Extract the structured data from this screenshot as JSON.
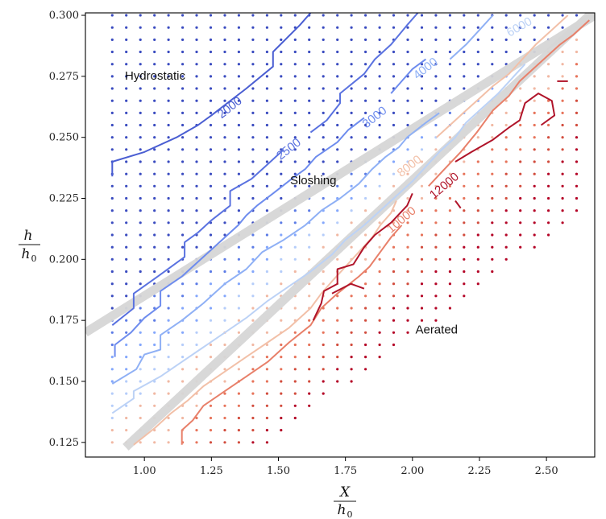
{
  "chart_data": {
    "type": "contour",
    "xlabel": {
      "num": "X",
      "den": "h",
      "den_sub": "0"
    },
    "ylabel": {
      "num": "h",
      "den": "h",
      "den_sub": "0"
    },
    "xlim": [
      0.78,
      2.68
    ],
    "ylim": [
      0.119,
      0.301
    ],
    "x_ticks": [
      "1.00",
      "1.25",
      "1.50",
      "1.75",
      "2.00",
      "2.25",
      "2.50"
    ],
    "x_tick_values": [
      1.0,
      1.25,
      1.5,
      1.75,
      2.0,
      2.25,
      2.5
    ],
    "y_ticks": [
      "0.125",
      "0.150",
      "0.175",
      "0.200",
      "0.225",
      "0.250",
      "0.275",
      "0.300"
    ],
    "y_tick_values": [
      0.125,
      0.15,
      0.175,
      0.2,
      0.225,
      0.25,
      0.275,
      0.3
    ],
    "regions": [
      {
        "label": "Hydrostatic",
        "x": 1.04,
        "y": 0.275
      },
      {
        "label": "Sloshing",
        "x": 1.63,
        "y": 0.232
      },
      {
        "label": "Aerated",
        "x": 2.09,
        "y": 0.171
      }
    ],
    "boundaries": [
      {
        "x": [
          0.78,
          2.68
        ],
        "y": [
          0.17,
          0.3
        ]
      },
      {
        "x": [
          0.93,
          2.68
        ],
        "y": [
          0.123,
          0.302
        ]
      }
    ],
    "contours": [
      {
        "level": 2000,
        "label": "2000",
        "color": "#4a5ed2",
        "points": [
          [
            0.88,
            0.234
          ],
          [
            0.88,
            0.24
          ],
          [
            1.0,
            0.244
          ],
          [
            1.12,
            0.25
          ],
          [
            1.2,
            0.255
          ],
          [
            1.25,
            0.259
          ],
          [
            1.38,
            0.27
          ],
          [
            1.48,
            0.279
          ],
          [
            1.48,
            0.285
          ],
          [
            1.58,
            0.296
          ],
          [
            1.62,
            0.301
          ]
        ],
        "label_at": [
          1.32,
          0.262
        ],
        "label_angle": -38
      },
      {
        "level": 2500,
        "label": "2500",
        "color": "#5a72e0",
        "points": [
          [
            0.88,
            0.173
          ],
          [
            0.96,
            0.18
          ],
          [
            0.96,
            0.186
          ],
          [
            1.05,
            0.193
          ],
          [
            1.15,
            0.201
          ],
          [
            1.15,
            0.207
          ],
          [
            1.2,
            0.211
          ],
          [
            1.25,
            0.216
          ],
          [
            1.32,
            0.222
          ],
          [
            1.32,
            0.228
          ],
          [
            1.4,
            0.233
          ],
          [
            1.45,
            0.238
          ],
          [
            1.5,
            0.243
          ],
          [
            1.52,
            0.245
          ]
        ],
        "label_at": [
          1.54,
          0.245
        ],
        "label_angle": -38
      },
      {
        "level": 2500,
        "label": "",
        "color": "#5a72e0",
        "points": [
          [
            1.62,
            0.252
          ],
          [
            1.68,
            0.257
          ],
          [
            1.73,
            0.264
          ],
          [
            1.73,
            0.268
          ],
          [
            1.82,
            0.276
          ],
          [
            1.86,
            0.282
          ],
          [
            1.92,
            0.288
          ],
          [
            1.98,
            0.296
          ],
          [
            2.02,
            0.301
          ]
        ],
        "label_at": null,
        "label_angle": 0
      },
      {
        "level": 3000,
        "label": "3000",
        "color": "#6e8cee",
        "points": [
          [
            0.89,
            0.16
          ],
          [
            0.89,
            0.165
          ],
          [
            0.95,
            0.17
          ],
          [
            1.0,
            0.176
          ],
          [
            1.06,
            0.181
          ],
          [
            1.06,
            0.187
          ],
          [
            1.14,
            0.193
          ],
          [
            1.2,
            0.199
          ],
          [
            1.25,
            0.204
          ],
          [
            1.3,
            0.209
          ],
          [
            1.35,
            0.214
          ],
          [
            1.38,
            0.218
          ],
          [
            1.42,
            0.222
          ],
          [
            1.48,
            0.227
          ],
          [
            1.55,
            0.233
          ],
          [
            1.6,
            0.237
          ],
          [
            1.64,
            0.242
          ],
          [
            1.72,
            0.248
          ],
          [
            1.76,
            0.253
          ],
          [
            1.82,
            0.258
          ]
        ],
        "label_at": [
          1.86,
          0.258
        ],
        "label_angle": -38
      },
      {
        "level": 3000,
        "label": "",
        "color": "#6e8cee",
        "points": [
          [
            1.92,
            0.268
          ],
          [
            1.96,
            0.273
          ],
          [
            2.0,
            0.278
          ],
          [
            2.05,
            0.282
          ]
        ],
        "label_at": null,
        "label_angle": 0
      },
      {
        "level": 4000,
        "label": "4000",
        "color": "#8fb0f5",
        "points": [
          [
            0.88,
            0.149
          ],
          [
            0.97,
            0.155
          ],
          [
            1.0,
            0.161
          ],
          [
            1.06,
            0.163
          ],
          [
            1.06,
            0.169
          ],
          [
            1.14,
            0.175
          ],
          [
            1.22,
            0.182
          ],
          [
            1.26,
            0.186
          ],
          [
            1.3,
            0.19
          ],
          [
            1.38,
            0.196
          ],
          [
            1.44,
            0.203
          ],
          [
            1.52,
            0.208
          ],
          [
            1.6,
            0.214
          ],
          [
            1.66,
            0.22
          ],
          [
            1.73,
            0.225
          ],
          [
            1.8,
            0.231
          ],
          [
            1.85,
            0.237
          ],
          [
            1.9,
            0.242
          ],
          [
            1.95,
            0.246
          ],
          [
            1.98,
            0.25
          ],
          [
            2.05,
            0.256
          ],
          [
            2.1,
            0.26
          ]
        ],
        "label_at": [
          2.05,
          0.278
        ],
        "label_angle": -38
      },
      {
        "level": 4000,
        "label": "",
        "color": "#8fb0f5",
        "points": [
          [
            2.14,
            0.282
          ],
          [
            2.2,
            0.288
          ],
          [
            2.25,
            0.294
          ],
          [
            2.3,
            0.3
          ]
        ],
        "label_at": null,
        "label_angle": 0
      },
      {
        "level": 6000,
        "label": "6000",
        "color": "#bcd2f6",
        "points": [
          [
            0.88,
            0.137
          ],
          [
            0.96,
            0.143
          ],
          [
            0.96,
            0.146
          ],
          [
            1.06,
            0.152
          ],
          [
            1.14,
            0.158
          ],
          [
            1.22,
            0.164
          ],
          [
            1.3,
            0.17
          ],
          [
            1.38,
            0.176
          ],
          [
            1.46,
            0.183
          ],
          [
            1.54,
            0.189
          ],
          [
            1.62,
            0.195
          ],
          [
            1.7,
            0.202
          ],
          [
            1.75,
            0.208
          ],
          [
            1.82,
            0.214
          ],
          [
            1.88,
            0.22
          ],
          [
            1.94,
            0.226
          ],
          [
            2.0,
            0.232
          ],
          [
            2.05,
            0.238
          ],
          [
            2.1,
            0.244
          ],
          [
            2.16,
            0.25
          ],
          [
            2.2,
            0.256
          ],
          [
            2.26,
            0.262
          ],
          [
            2.32,
            0.268
          ],
          [
            2.37,
            0.274
          ],
          [
            2.42,
            0.28
          ]
        ],
        "label_at": [
          2.4,
          0.295
        ],
        "label_angle": -30
      },
      {
        "level": 8000,
        "label": "8000",
        "color": "#f2c0a8",
        "points": [
          [
            0.96,
            0.124
          ],
          [
            1.04,
            0.131
          ],
          [
            1.1,
            0.137
          ],
          [
            1.16,
            0.142
          ],
          [
            1.22,
            0.148
          ],
          [
            1.3,
            0.154
          ],
          [
            1.38,
            0.16
          ],
          [
            1.46,
            0.166
          ],
          [
            1.54,
            0.172
          ],
          [
            1.62,
            0.18
          ],
          [
            1.66,
            0.186
          ],
          [
            1.7,
            0.191
          ],
          [
            1.75,
            0.197
          ],
          [
            1.8,
            0.203
          ],
          [
            1.85,
            0.209
          ],
          [
            1.88,
            0.214
          ],
          [
            1.92,
            0.219
          ],
          [
            1.94,
            0.224
          ]
        ],
        "label_at": [
          1.99,
          0.238
        ],
        "label_angle": -38
      },
      {
        "level": 8000,
        "label": "",
        "color": "#f2c0a8",
        "points": [
          [
            2.09,
            0.25
          ],
          [
            2.14,
            0.255
          ],
          [
            2.2,
            0.261
          ],
          [
            2.25,
            0.266
          ],
          [
            2.3,
            0.271
          ],
          [
            2.36,
            0.276
          ],
          [
            2.41,
            0.282
          ],
          [
            2.46,
            0.288
          ],
          [
            2.52,
            0.294
          ],
          [
            2.58,
            0.3
          ]
        ],
        "label_at": null,
        "label_angle": 0
      },
      {
        "level": 10000,
        "label": "10000",
        "color": "#e8806a",
        "points": [
          [
            1.14,
            0.124
          ],
          [
            1.14,
            0.13
          ],
          [
            1.18,
            0.134
          ],
          [
            1.22,
            0.14
          ],
          [
            1.3,
            0.146
          ],
          [
            1.38,
            0.152
          ],
          [
            1.46,
            0.158
          ],
          [
            1.54,
            0.166
          ],
          [
            1.62,
            0.173
          ],
          [
            1.66,
            0.18
          ],
          [
            1.72,
            0.186
          ],
          [
            1.8,
            0.193
          ],
          [
            1.84,
            0.197
          ],
          [
            1.88,
            0.203
          ],
          [
            1.92,
            0.209
          ],
          [
            1.96,
            0.214
          ]
        ],
        "label_at": [
          1.96,
          0.216
        ],
        "label_angle": -40
      },
      {
        "level": 10000,
        "label": "",
        "color": "#e8806a",
        "points": [
          [
            2.06,
            0.23
          ],
          [
            2.12,
            0.237
          ],
          [
            2.18,
            0.244
          ],
          [
            2.24,
            0.252
          ],
          [
            2.3,
            0.261
          ],
          [
            2.36,
            0.267
          ],
          [
            2.4,
            0.273
          ],
          [
            2.45,
            0.278
          ],
          [
            2.5,
            0.283
          ],
          [
            2.55,
            0.288
          ],
          [
            2.6,
            0.292
          ],
          [
            2.66,
            0.298
          ]
        ],
        "label_at": null,
        "label_angle": 0
      },
      {
        "level": 12000,
        "label": "12000",
        "color": "#b0142a",
        "points": [
          [
            1.63,
            0.175
          ],
          [
            1.66,
            0.182
          ],
          [
            1.67,
            0.187
          ],
          [
            1.72,
            0.19
          ],
          [
            1.72,
            0.196
          ],
          [
            1.78,
            0.198
          ],
          [
            1.82,
            0.205
          ],
          [
            1.86,
            0.21
          ],
          [
            1.92,
            0.215
          ],
          [
            1.98,
            0.222
          ],
          [
            2.0,
            0.227
          ]
        ],
        "label_at": [
          2.12,
          0.23
        ],
        "label_angle": -40
      },
      {
        "level": 12000,
        "label": "",
        "color": "#b0142a",
        "points": [
          [
            1.7,
            0.186
          ],
          [
            1.77,
            0.19
          ],
          [
            1.82,
            0.188
          ]
        ],
        "label_at": null,
        "label_angle": 0
      },
      {
        "level": 12000,
        "label": "",
        "color": "#b0142a",
        "points": [
          [
            2.16,
            0.24
          ],
          [
            2.22,
            0.244
          ],
          [
            2.3,
            0.249
          ],
          [
            2.36,
            0.254
          ],
          [
            2.4,
            0.257
          ],
          [
            2.42,
            0.264
          ],
          [
            2.47,
            0.268
          ],
          [
            2.52,
            0.265
          ],
          [
            2.53,
            0.259
          ],
          [
            2.48,
            0.255
          ]
        ],
        "label_at": null,
        "label_angle": 0
      },
      {
        "level": 12000,
        "label": "",
        "color": "#b0142a",
        "points": [
          [
            2.54,
            0.273
          ],
          [
            2.58,
            0.273
          ]
        ],
        "label_at": null,
        "label_angle": 0
      },
      {
        "level": 12000,
        "label": "",
        "color": "#b0142a",
        "points": [
          [
            2.16,
            0.224
          ],
          [
            2.18,
            0.221
          ]
        ],
        "label_at": null,
        "label_angle": 0
      }
    ],
    "dot_colors": [
      "#3b4cc0",
      "#5d7ce6",
      "#84a7fc",
      "#b5cdfa",
      "#f1b8a3",
      "#e7745b",
      "#d24d3e",
      "#b40426"
    ],
    "grid": false,
    "legend": "none"
  }
}
